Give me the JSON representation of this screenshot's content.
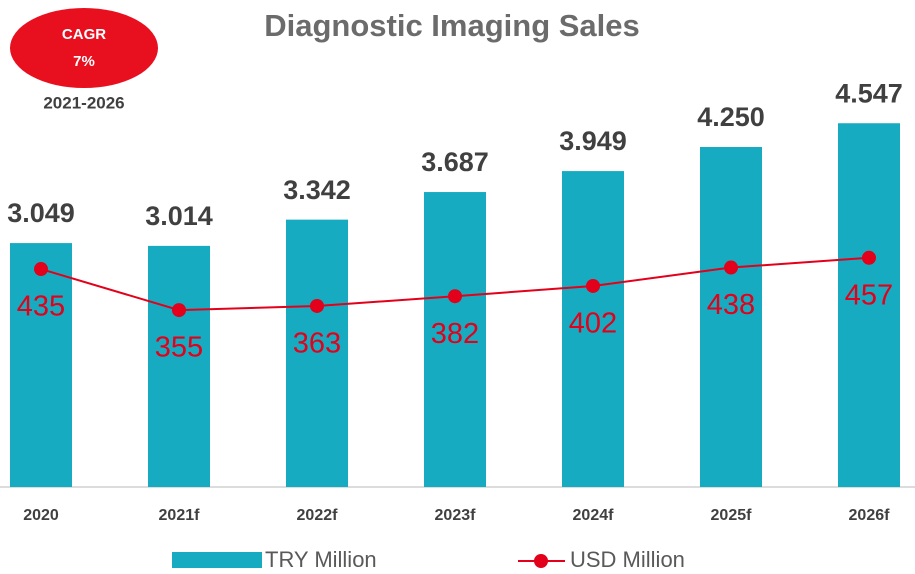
{
  "chart_data": {
    "type": "bar_line",
    "title": "Diagnostic Imaging Sales",
    "annotations": {
      "badge_title": "CAGR",
      "badge_value": "7%",
      "period": "2021-2026"
    },
    "categories": [
      "2020",
      "2021f",
      "2022f",
      "2023f",
      "2024f",
      "2025f",
      "2026f"
    ],
    "series": [
      {
        "name": "TRY Million",
        "color": "#17abc1",
        "type": "bar",
        "values": [
          3049,
          3014,
          3342,
          3687,
          3949,
          4250,
          4547
        ],
        "value_labels": [
          "3.049",
          "3.014",
          "3.342",
          "3.687",
          "3.949",
          "4.250",
          "4.547"
        ]
      },
      {
        "name": "USD Million",
        "color": "#e2001a",
        "type": "line",
        "axis": "y2",
        "values": [
          435,
          355,
          363,
          382,
          402,
          438,
          457
        ]
      }
    ],
    "ylim": [
      0,
      5000
    ],
    "y2lim": [
      10,
      790
    ]
  }
}
